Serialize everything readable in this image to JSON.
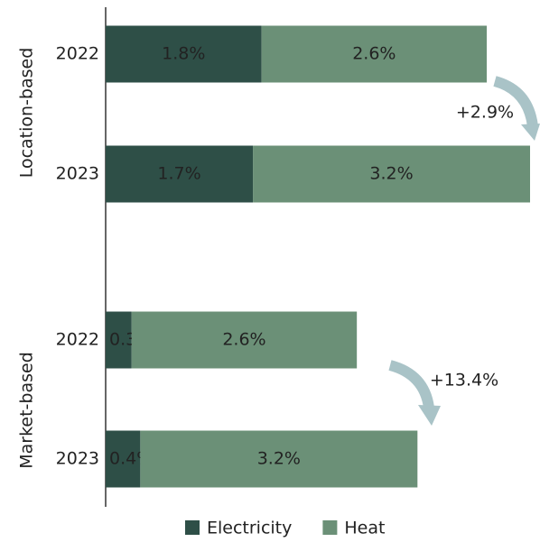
{
  "chart_data": {
    "type": "bar",
    "orientation": "horizontal",
    "stacked": true,
    "groups": [
      "Location-based",
      "Market-based"
    ],
    "categories": [
      "2022",
      "2023",
      "2022",
      "2023"
    ],
    "series": [
      {
        "name": "Electricity",
        "color": "#2e4f47",
        "label_color": "#e6ece9",
        "values": [
          1.8,
          1.7,
          0.3,
          0.4
        ],
        "value_labels": [
          "1.8%",
          "1.7%",
          "0.3 %",
          "0.4%"
        ]
      },
      {
        "name": "Heat",
        "color": "#6b9077",
        "label_color": "#1e2623",
        "values": [
          2.6,
          3.2,
          2.6,
          3.2
        ],
        "value_labels": [
          "2.6%",
          "3.2%",
          "2.6%",
          "3.2%"
        ]
      }
    ],
    "annotations": [
      {
        "text": "+2.9%",
        "color": "#a9c3c7"
      },
      {
        "text": "+13.4%",
        "color": "#a9c3c7"
      }
    ],
    "legend": "bottom"
  }
}
